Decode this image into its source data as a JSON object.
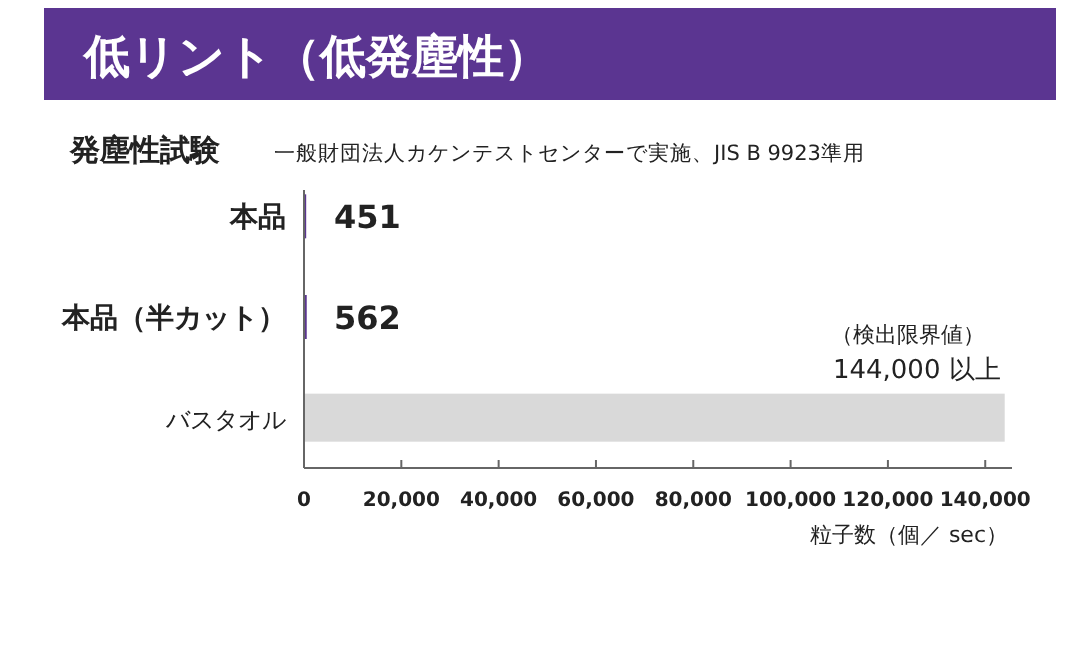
{
  "chart_data": {
    "type": "bar",
    "orientation": "horizontal",
    "title": "低リント（低発塵性）",
    "subtitle": "発塵性試験",
    "categories": [
      "本品",
      "本品（半カット）",
      "バスタオル"
    ],
    "values": [
      451,
      562,
      144000
    ],
    "colors": [
      "#5b3591",
      "#5b3591",
      "#d9d9d9"
    ],
    "value_labels": [
      "451",
      "562",
      "144,000 以上"
    ],
    "annotations": [
      "一般財団法人カケンテストセンターで実施、JIS B 9923準用",
      "（検出限界値）"
    ],
    "xlabel": "粒子数（個／ sec）",
    "xlim": [
      0,
      145500
    ],
    "xticks": [
      {
        "value": 0,
        "label": "0"
      },
      {
        "value": 20000,
        "label": "20,000"
      },
      {
        "value": 40000,
        "label": "40,000"
      },
      {
        "value": 60000,
        "label": "60,000"
      },
      {
        "value": 80000,
        "label": "80,000"
      },
      {
        "value": 100000,
        "label": "100,000"
      },
      {
        "value": 120000,
        "label": "120,000"
      },
      {
        "value": 140000,
        "label": "140,000"
      }
    ],
    "grid": false
  }
}
